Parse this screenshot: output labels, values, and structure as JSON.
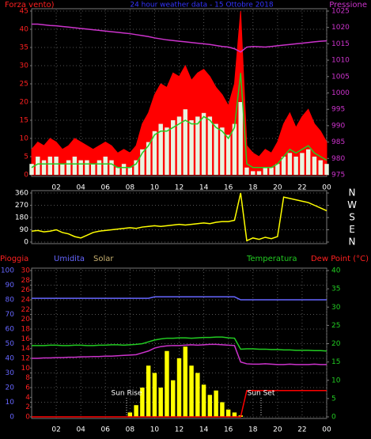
{
  "chart_data": [
    {
      "type": "line",
      "title": "24 hour weather data - 15 Ottobre 2018",
      "title_color": "#3333ff",
      "axis_labels": [
        {
          "text": "Forza vento)",
          "color": "#ff2020"
        },
        {
          "text": "Pressione",
          "color": "#cc33cc"
        }
      ],
      "xlim": [
        0,
        24
      ],
      "xticks": [
        {
          "value": 2,
          "label": "02"
        },
        {
          "value": 4,
          "label": "04"
        },
        {
          "value": 6,
          "label": "06"
        },
        {
          "value": 8,
          "label": "08"
        },
        10,
        12,
        14,
        16,
        18,
        20,
        22,
        {
          "value": 24,
          "label": "00"
        }
      ],
      "ylim": [
        0,
        45
      ],
      "yticks": [
        0,
        5,
        10,
        15,
        20,
        25,
        30,
        35,
        40,
        45
      ],
      "y_color": "#ff2020",
      "y2lim": [
        975,
        1025
      ],
      "y2ticks": [
        975,
        980,
        985,
        990,
        995,
        1000,
        1005,
        1010,
        1015,
        1020,
        1025
      ],
      "y2_color": "#cc33cc",
      "grid": true,
      "x": [
        0,
        0.5,
        1,
        1.5,
        2,
        2.5,
        3,
        3.5,
        4,
        4.5,
        5,
        5.5,
        6,
        6.5,
        7,
        7.5,
        8,
        8.5,
        9,
        9.5,
        10,
        10.5,
        11,
        11.5,
        12,
        12.5,
        13,
        13.5,
        14,
        14.5,
        15,
        15.5,
        16,
        16.5,
        17,
        17.5,
        18,
        18.5,
        19,
        19.5,
        20,
        20.5,
        21,
        21.5,
        22,
        22.5,
        23,
        23.5,
        24
      ],
      "series": [
        {
          "mark": "area",
          "color": "#ff0000",
          "values": [
            7,
            9,
            8,
            10,
            9,
            7,
            8,
            10,
            9,
            8,
            7,
            8,
            9,
            8,
            6,
            7,
            6,
            8,
            14,
            17,
            22,
            25,
            24,
            28,
            27,
            30,
            26,
            28,
            29,
            27,
            24,
            22,
            19,
            25,
            45,
            8,
            6,
            5,
            7,
            6,
            9,
            14,
            17,
            13,
            16,
            18,
            14,
            12,
            9
          ]
        },
        {
          "mark": "bar",
          "color": "#e8f4e0",
          "values": [
            3,
            5,
            4,
            5,
            5,
            3,
            4,
            5,
            4,
            4,
            3,
            4,
            5,
            4,
            2,
            3,
            2,
            4,
            7,
            9,
            12,
            14,
            13,
            15,
            16,
            18,
            15,
            16,
            17,
            16,
            14,
            13,
            11,
            14,
            20,
            2,
            1,
            1,
            2,
            2,
            3,
            5,
            6,
            5,
            6,
            7,
            5,
            4,
            3
          ]
        },
        {
          "mark": "line",
          "color": "#22cc22",
          "values": [
            2,
            3,
            3,
            3,
            3,
            3,
            3,
            3,
            3,
            3,
            3,
            3,
            3,
            3,
            2,
            2,
            2,
            3,
            6,
            8,
            11,
            12,
            12,
            13,
            14,
            15,
            14,
            14,
            16,
            15,
            13,
            12,
            10,
            13,
            28,
            3,
            2,
            2,
            2,
            2,
            3,
            5,
            7,
            6,
            7,
            8,
            6,
            5,
            4
          ]
        },
        {
          "mark": "line",
          "color": "#cc33cc",
          "axis": "y2",
          "values": [
            1021,
            1021,
            1020.8,
            1020.6,
            1020.5,
            1020.3,
            1020.1,
            1019.9,
            1019.7,
            1019.5,
            1019.3,
            1019.1,
            1018.9,
            1018.7,
            1018.5,
            1018.3,
            1018.1,
            1017.8,
            1017.5,
            1017.2,
            1016.8,
            1016.5,
            1016.2,
            1016,
            1015.8,
            1015.6,
            1015.4,
            1015.2,
            1015,
            1014.8,
            1014.5,
            1014.2,
            1014,
            1013.5,
            1012.5,
            1014,
            1014.2,
            1014.1,
            1014,
            1014.2,
            1014.4,
            1014.6,
            1014.8,
            1015,
            1015.2,
            1015.4,
            1015.6,
            1015.8,
            1015.9
          ]
        }
      ]
    },
    {
      "type": "line",
      "xlim": [
        0,
        24
      ],
      "ylim": [
        0,
        360
      ],
      "yticks": [
        0,
        90,
        180,
        270,
        360
      ],
      "y_color": "#ffffff",
      "y2lim": [
        0,
        360
      ],
      "y2ticks": [
        {
          "value": 360,
          "label": "N"
        },
        {
          "value": 270,
          "label": "W"
        },
        {
          "value": 180,
          "label": "S"
        },
        {
          "value": 90,
          "label": "E"
        },
        {
          "value": 0,
          "label": "N"
        }
      ],
      "y2_color": "#ffffff",
      "grid": true,
      "x": [
        0,
        0.5,
        1,
        1.5,
        2,
        2.5,
        3,
        3.5,
        4,
        4.5,
        5,
        5.5,
        6,
        6.5,
        7,
        7.5,
        8,
        8.5,
        9,
        9.5,
        10,
        10.5,
        11,
        11.5,
        12,
        12.5,
        13,
        13.5,
        14,
        14.5,
        15,
        15.5,
        16,
        16.5,
        17,
        17.5,
        18,
        18.5,
        19,
        19.5,
        20,
        20.5,
        21,
        21.5,
        22,
        22.5,
        23,
        23.5,
        24
      ],
      "series": [
        {
          "mark": "line",
          "color": "#ffff00",
          "values": [
            80,
            85,
            75,
            80,
            90,
            70,
            60,
            40,
            30,
            50,
            70,
            80,
            85,
            90,
            95,
            100,
            105,
            100,
            110,
            115,
            120,
            115,
            120,
            125,
            130,
            125,
            130,
            135,
            140,
            135,
            145,
            150,
            150,
            160,
            360,
            10,
            30,
            20,
            35,
            25,
            40,
            330,
            320,
            310,
            300,
            290,
            270,
            250,
            230
          ]
        }
      ]
    },
    {
      "type": "line",
      "axis_labels": [
        {
          "text": "Pioggia",
          "color": "#ff2020"
        },
        {
          "text": "Umidita",
          "color": "#6666ff"
        },
        {
          "text": "Solar",
          "color": "#c8b070"
        },
        {
          "text": "Temperatura",
          "color": "#22cc22"
        },
        {
          "text": "Dew Point (°C)",
          "color": "#ff2020"
        }
      ],
      "annotations": [
        "Sun Rise",
        "Sun Set"
      ],
      "xlim": [
        0,
        24
      ],
      "xticks": [
        {
          "value": 2,
          "label": "02"
        },
        {
          "value": 4,
          "label": "04"
        },
        {
          "value": 6,
          "label": "06"
        },
        {
          "value": 8,
          "label": "08"
        },
        10,
        12,
        14,
        16,
        18,
        20,
        22,
        {
          "value": 24,
          "label": "00"
        }
      ],
      "ylim": [
        0,
        100
      ],
      "yticks": [
        0,
        10,
        20,
        30,
        40,
        50,
        60,
        70,
        80,
        90,
        100
      ],
      "y_color": "#6666ff",
      "y3lim": [
        0,
        30
      ],
      "y3ticks": [
        0,
        2,
        4,
        6,
        8,
        10,
        12,
        14,
        16,
        18,
        20,
        22,
        24,
        26,
        28,
        30
      ],
      "y3_color": "#ff2020",
      "y2lim": [
        0,
        40
      ],
      "y2ticks": [
        0,
        5,
        10,
        15,
        20,
        25,
        30,
        35,
        40
      ],
      "y2_color": "#22cc22",
      "grid": true,
      "x": [
        0,
        0.5,
        1,
        1.5,
        2,
        2.5,
        3,
        3.5,
        4,
        4.5,
        5,
        5.5,
        6,
        6.5,
        7,
        7.5,
        8,
        8.5,
        9,
        9.5,
        10,
        10.5,
        11,
        11.5,
        12,
        12.5,
        13,
        13.5,
        14,
        14.5,
        15,
        15.5,
        16,
        16.5,
        17,
        17.5,
        18,
        18.5,
        19,
        19.5,
        20,
        20.5,
        21,
        21.5,
        22,
        22.5,
        23,
        23.5,
        24
      ],
      "series": [
        {
          "mark": "bar",
          "color": "#ffff00",
          "values": [
            0,
            0,
            0,
            0,
            0,
            0,
            0,
            0,
            0,
            0,
            0,
            0,
            0,
            0,
            0,
            0,
            3,
            8,
            20,
            35,
            30,
            20,
            45,
            25,
            40,
            48,
            35,
            30,
            22,
            15,
            18,
            10,
            5,
            3,
            1,
            0,
            0,
            0,
            0,
            0,
            0,
            0,
            0,
            0,
            0,
            0,
            0,
            0,
            0
          ]
        },
        {
          "mark": "line",
          "color": "#6666ff",
          "values": [
            81,
            81,
            81,
            81,
            81,
            81,
            81,
            81,
            81,
            81,
            81,
            81,
            81,
            81,
            81,
            81,
            81,
            81,
            81,
            81,
            82,
            82,
            82,
            82,
            82,
            82,
            82,
            82,
            82,
            82,
            82,
            82,
            82,
            82,
            80,
            80,
            80,
            80,
            80,
            80,
            80,
            80,
            80,
            80,
            80,
            80,
            80,
            80,
            80
          ]
        },
        {
          "mark": "line",
          "color": "#22cc22",
          "axis": "y2",
          "values": [
            19.5,
            19.5,
            19.5,
            19.6,
            19.6,
            19.5,
            19.5,
            19.6,
            19.6,
            19.5,
            19.5,
            19.6,
            19.6,
            19.7,
            19.7,
            19.6,
            19.7,
            19.8,
            20,
            20.5,
            21,
            21.3,
            21.5,
            21.5,
            21.6,
            21.6,
            21.5,
            21.6,
            21.7,
            21.7,
            21.8,
            21.8,
            21.6,
            21.5,
            18.5,
            18.6,
            18.6,
            18.5,
            18.5,
            18.4,
            18.4,
            18.3,
            18.3,
            18.2,
            18.2,
            18.2,
            18.1,
            18.1,
            18
          ]
        },
        {
          "mark": "line",
          "color": "#cc33cc",
          "axis": "y2",
          "values": [
            16,
            16,
            16.1,
            16.1,
            16.2,
            16.2,
            16.3,
            16.3,
            16.4,
            16.4,
            16.5,
            16.5,
            16.6,
            16.6,
            16.7,
            16.8,
            16.9,
            17,
            17.5,
            18,
            18.8,
            19.2,
            19.4,
            19.5,
            19.5,
            19.6,
            19.7,
            19.6,
            19.7,
            19.8,
            19.8,
            19.7,
            19.6,
            19.5,
            15,
            14.5,
            14.4,
            14.4,
            14.5,
            14.4,
            14.3,
            14.3,
            14.4,
            14.3,
            14.3,
            14.3,
            14.4,
            14.3,
            14.3
          ]
        },
        {
          "mark": "line",
          "color": "#ff0000",
          "axis": "y3",
          "values": [
            0,
            0,
            0,
            0,
            0,
            0,
            0,
            0,
            0,
            0,
            0,
            0,
            0,
            0,
            0,
            0,
            0,
            0,
            0,
            0,
            0,
            0,
            0,
            0,
            0,
            0,
            0,
            0,
            0,
            0,
            0,
            0,
            0,
            0,
            0,
            5.4,
            5.4,
            5.4,
            5.4,
            5.4,
            5.4,
            5.4,
            5.4,
            5.4,
            5.4,
            5.4,
            5.4,
            5.4,
            5.4
          ]
        }
      ]
    }
  ]
}
